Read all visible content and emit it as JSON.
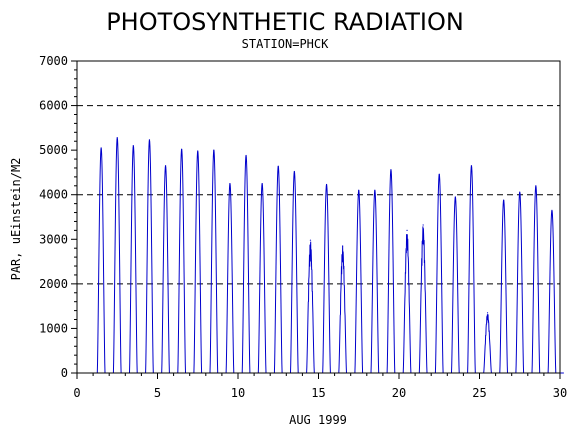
{
  "chart_data": {
    "type": "line",
    "title": "PHOTOSYNTHETIC RADIATION",
    "subtitle": "STATION=PHCK",
    "xlabel": "AUG 1999",
    "ylabel": "PAR, uEinstein/M2",
    "xlim": [
      0,
      30
    ],
    "ylim": [
      0,
      7000
    ],
    "x_ticks": [
      0,
      5,
      10,
      15,
      20,
      25,
      30
    ],
    "y_ticks": [
      0,
      1000,
      2000,
      3000,
      4000,
      5000,
      6000,
      7000
    ],
    "reference_lines": [
      2000,
      4000,
      6000
    ],
    "grid": false,
    "legend": "none",
    "series": [
      {
        "color": "#0000cc",
        "daily_peaks": [
          {
            "day": 1,
            "peak": 5050
          },
          {
            "day": 2,
            "peak": 5280
          },
          {
            "day": 3,
            "peak": 5100
          },
          {
            "day": 4,
            "peak": 5230
          },
          {
            "day": 5,
            "peak": 4650
          },
          {
            "day": 6,
            "peak": 5020
          },
          {
            "day": 7,
            "peak": 4980
          },
          {
            "day": 8,
            "peak": 5000
          },
          {
            "day": 9,
            "peak": 4250
          },
          {
            "day": 10,
            "peak": 4880
          },
          {
            "day": 11,
            "peak": 4250
          },
          {
            "day": 12,
            "peak": 4640
          },
          {
            "day": 13,
            "peak": 4520
          },
          {
            "day": 14,
            "peak": 2980
          },
          {
            "day": 15,
            "peak": 4230
          },
          {
            "day": 16,
            "peak": 2850
          },
          {
            "day": 17,
            "peak": 4100
          },
          {
            "day": 18,
            "peak": 4100
          },
          {
            "day": 19,
            "peak": 4560
          },
          {
            "day": 20,
            "peak": 3200
          },
          {
            "day": 21,
            "peak": 3320
          },
          {
            "day": 22,
            "peak": 4460
          },
          {
            "day": 23,
            "peak": 3950
          },
          {
            "day": 24,
            "peak": 4650
          },
          {
            "day": 25,
            "peak": 1350
          },
          {
            "day": 26,
            "peak": 3880
          },
          {
            "day": 27,
            "peak": 4060
          },
          {
            "day": 28,
            "peak": 4200
          },
          {
            "day": 29,
            "peak": 3650
          }
        ]
      }
    ]
  }
}
